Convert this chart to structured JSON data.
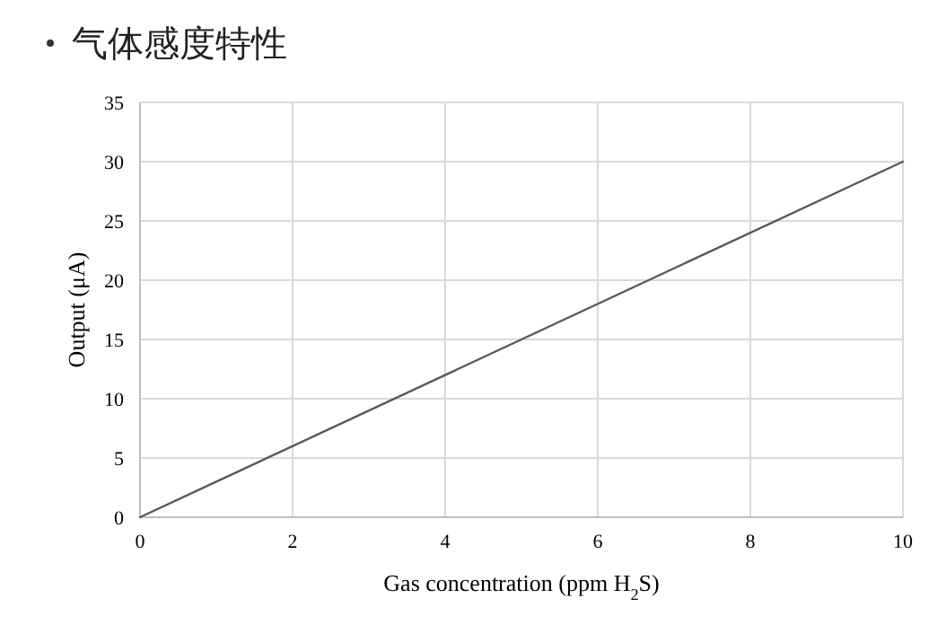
{
  "chart_data": {
    "type": "line",
    "title": "气体感度特性",
    "xlabel": "Gas concentration (ppm H$_{2}$S)",
    "ylabel": "Output (μA)",
    "x": [
      0,
      10
    ],
    "series": [
      {
        "color": "#595959",
        "values": [
          0,
          30
        ]
      }
    ],
    "xlim": [
      0,
      10
    ],
    "xticks": [
      0,
      2,
      4,
      6,
      8,
      10
    ],
    "ylim": [
      0,
      35
    ],
    "yticks": [
      0,
      5,
      10,
      15,
      20,
      25,
      30,
      35
    ],
    "grid": true,
    "marker": "none",
    "line_style": "solid"
  }
}
